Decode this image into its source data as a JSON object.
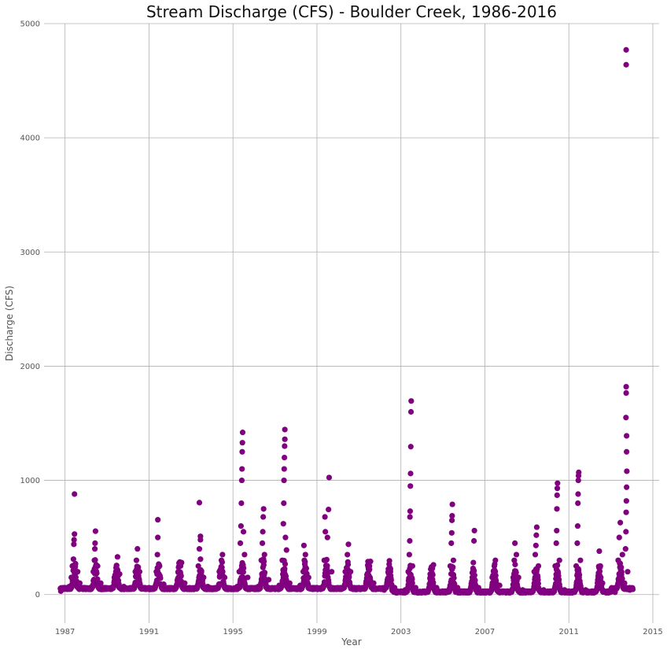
{
  "chart_data": {
    "type": "scatter",
    "title": "Stream Discharge (CFS) - Boulder Creek, 1986-2016",
    "xlabel": "Year",
    "ylabel": "Discharge (CFS)",
    "xlim": [
      1986.0,
      2015.3
    ],
    "ylim": [
      -250,
      5000
    ],
    "x_ticks": [
      "1987",
      "1991",
      "1995",
      "1999",
      "2003",
      "2007",
      "2011",
      "2015"
    ],
    "y_ticks": [
      "0",
      "1000",
      "2000",
      "3000",
      "4000",
      "5000"
    ],
    "grid": true,
    "marker_color": "#800080",
    "series": [
      {
        "points": [
          [
            1986.8,
            30
          ],
          [
            1987.0,
            50
          ],
          [
            1987.2,
            70
          ],
          [
            1987.3,
            150
          ],
          [
            1987.35,
            250
          ],
          [
            1987.4,
            310
          ],
          [
            1987.42,
            440
          ],
          [
            1987.43,
            480
          ],
          [
            1987.45,
            530
          ],
          [
            1987.45,
            880
          ],
          [
            1987.5,
            270
          ],
          [
            1987.6,
            200
          ],
          [
            1987.7,
            100
          ],
          [
            1987.9,
            60
          ],
          [
            1988.2,
            60
          ],
          [
            1988.35,
            200
          ],
          [
            1988.4,
            300
          ],
          [
            1988.42,
            400
          ],
          [
            1988.43,
            450
          ],
          [
            1988.45,
            555
          ],
          [
            1988.55,
            250
          ],
          [
            1988.7,
            100
          ],
          [
            1988.9,
            60
          ],
          [
            1989.2,
            60
          ],
          [
            1989.35,
            150
          ],
          [
            1989.45,
            250
          ],
          [
            1989.5,
            330
          ],
          [
            1989.6,
            180
          ],
          [
            1989.8,
            70
          ],
          [
            1990.2,
            60
          ],
          [
            1990.35,
            200
          ],
          [
            1990.4,
            300
          ],
          [
            1990.45,
            400
          ],
          [
            1990.55,
            200
          ],
          [
            1990.8,
            60
          ],
          [
            1991.2,
            50
          ],
          [
            1991.35,
            200
          ],
          [
            1991.4,
            350
          ],
          [
            1991.42,
            500
          ],
          [
            1991.42,
            655
          ],
          [
            1991.5,
            250
          ],
          [
            1991.7,
            90
          ],
          [
            1992.2,
            50
          ],
          [
            1992.4,
            150
          ],
          [
            1992.5,
            250
          ],
          [
            1992.55,
            280
          ],
          [
            1992.7,
            100
          ],
          [
            1993.2,
            60
          ],
          [
            1993.35,
            250
          ],
          [
            1993.4,
            400
          ],
          [
            1993.45,
            480
          ],
          [
            1993.45,
            510
          ],
          [
            1993.4,
            805
          ],
          [
            1993.6,
            150
          ],
          [
            1993.8,
            70
          ],
          [
            1994.2,
            60
          ],
          [
            1994.35,
            200
          ],
          [
            1994.45,
            300
          ],
          [
            1994.5,
            350
          ],
          [
            1994.6,
            150
          ],
          [
            1995.2,
            70
          ],
          [
            1995.3,
            200
          ],
          [
            1995.35,
            450
          ],
          [
            1995.38,
            600
          ],
          [
            1995.4,
            800
          ],
          [
            1995.42,
            1000
          ],
          [
            1995.43,
            1100
          ],
          [
            1995.44,
            1250
          ],
          [
            1995.45,
            1330
          ],
          [
            1995.46,
            1420
          ],
          [
            1995.5,
            550
          ],
          [
            1995.55,
            350
          ],
          [
            1995.7,
            150
          ],
          [
            1996.2,
            70
          ],
          [
            1996.35,
            300
          ],
          [
            1996.4,
            450
          ],
          [
            1996.42,
            550
          ],
          [
            1996.44,
            680
          ],
          [
            1996.46,
            750
          ],
          [
            1996.5,
            350
          ],
          [
            1996.7,
            130
          ],
          [
            1997.2,
            80
          ],
          [
            1997.35,
            300
          ],
          [
            1997.4,
            620
          ],
          [
            1997.42,
            800
          ],
          [
            1997.43,
            1000
          ],
          [
            1997.44,
            1100
          ],
          [
            1997.45,
            1200
          ],
          [
            1997.46,
            1300
          ],
          [
            1997.47,
            1360
          ],
          [
            1997.47,
            1445
          ],
          [
            1997.5,
            500
          ],
          [
            1997.55,
            390
          ],
          [
            1997.7,
            100
          ],
          [
            1998.2,
            80
          ],
          [
            1998.35,
            200
          ],
          [
            1998.4,
            300
          ],
          [
            1998.45,
            350
          ],
          [
            1998.38,
            430
          ],
          [
            1998.6,
            150
          ],
          [
            1999.2,
            60
          ],
          [
            1999.35,
            300
          ],
          [
            1999.4,
            550
          ],
          [
            1999.38,
            680
          ],
          [
            1999.5,
            500
          ],
          [
            1999.55,
            745
          ],
          [
            1999.58,
            1025
          ],
          [
            1999.7,
            200
          ],
          [
            2000.2,
            60
          ],
          [
            2000.35,
            200
          ],
          [
            2000.45,
            350
          ],
          [
            2000.5,
            440
          ],
          [
            2000.6,
            200
          ],
          [
            2001.2,
            50
          ],
          [
            2001.4,
            150
          ],
          [
            2001.5,
            250
          ],
          [
            2001.55,
            290
          ],
          [
            2001.7,
            100
          ],
          [
            2002.2,
            40
          ],
          [
            2002.4,
            120
          ],
          [
            2002.5,
            200
          ],
          [
            2002.7,
            60
          ],
          [
            2003.2,
            40
          ],
          [
            2003.35,
            200
          ],
          [
            2003.4,
            350
          ],
          [
            2003.42,
            470
          ],
          [
            2003.43,
            680
          ],
          [
            2003.44,
            730
          ],
          [
            2003.45,
            950
          ],
          [
            2003.46,
            1060
          ],
          [
            2003.47,
            1295
          ],
          [
            2003.48,
            1600
          ],
          [
            2003.49,
            1695
          ],
          [
            2003.55,
            250
          ],
          [
            2003.7,
            60
          ],
          [
            2004.2,
            20
          ],
          [
            2004.4,
            150
          ],
          [
            2004.5,
            230
          ],
          [
            2004.55,
            260
          ],
          [
            2004.7,
            60
          ],
          [
            2005.2,
            20
          ],
          [
            2005.35,
            250
          ],
          [
            2005.4,
            450
          ],
          [
            2005.42,
            540
          ],
          [
            2005.43,
            650
          ],
          [
            2005.44,
            690
          ],
          [
            2005.45,
            790
          ],
          [
            2005.5,
            300
          ],
          [
            2005.7,
            60
          ],
          [
            2006.2,
            20
          ],
          [
            2006.4,
            150
          ],
          [
            2006.45,
            280
          ],
          [
            2006.48,
            470
          ],
          [
            2006.5,
            560
          ],
          [
            2006.7,
            60
          ],
          [
            2007.2,
            30
          ],
          [
            2007.35,
            150
          ],
          [
            2007.45,
            250
          ],
          [
            2007.5,
            300
          ],
          [
            2007.7,
            80
          ],
          [
            2008.2,
            20
          ],
          [
            2008.35,
            150
          ],
          [
            2008.4,
            300
          ],
          [
            2008.43,
            450
          ],
          [
            2008.5,
            350
          ],
          [
            2008.6,
            150
          ],
          [
            2008.8,
            40
          ],
          [
            2009.2,
            20
          ],
          [
            2009.35,
            200
          ],
          [
            2009.4,
            350
          ],
          [
            2009.43,
            430
          ],
          [
            2009.45,
            520
          ],
          [
            2009.47,
            590
          ],
          [
            2009.55,
            250
          ],
          [
            2009.8,
            40
          ],
          [
            2010.2,
            20
          ],
          [
            2010.35,
            250
          ],
          [
            2010.4,
            450
          ],
          [
            2010.42,
            560
          ],
          [
            2010.43,
            750
          ],
          [
            2010.44,
            870
          ],
          [
            2010.45,
            930
          ],
          [
            2010.46,
            975
          ],
          [
            2010.55,
            300
          ],
          [
            2010.8,
            40
          ],
          [
            2011.2,
            20
          ],
          [
            2011.35,
            250
          ],
          [
            2011.4,
            450
          ],
          [
            2011.42,
            600
          ],
          [
            2011.43,
            800
          ],
          [
            2011.44,
            880
          ],
          [
            2011.45,
            1000
          ],
          [
            2011.46,
            1040
          ],
          [
            2011.47,
            1070
          ],
          [
            2011.55,
            300
          ],
          [
            2011.8,
            40
          ],
          [
            2012.2,
            20
          ],
          [
            2012.4,
            150
          ],
          [
            2012.5,
            250
          ],
          [
            2012.45,
            380
          ],
          [
            2012.6,
            100
          ],
          [
            2013.2,
            20
          ],
          [
            2013.35,
            300
          ],
          [
            2013.4,
            500
          ],
          [
            2013.45,
            630
          ],
          [
            2013.55,
            350
          ],
          [
            2013.65,
            100
          ],
          [
            2013.7,
            400
          ],
          [
            2013.72,
            550
          ],
          [
            2013.73,
            720
          ],
          [
            2013.74,
            820
          ],
          [
            2013.75,
            940
          ],
          [
            2013.76,
            1080
          ],
          [
            2013.75,
            1250
          ],
          [
            2013.75,
            1390
          ],
          [
            2013.72,
            1550
          ],
          [
            2013.73,
            1765
          ],
          [
            2013.73,
            1820
          ],
          [
            2013.73,
            4640
          ],
          [
            2013.73,
            4770
          ],
          [
            2013.8,
            200
          ],
          [
            2013.9,
            40
          ]
        ]
      }
    ]
  }
}
